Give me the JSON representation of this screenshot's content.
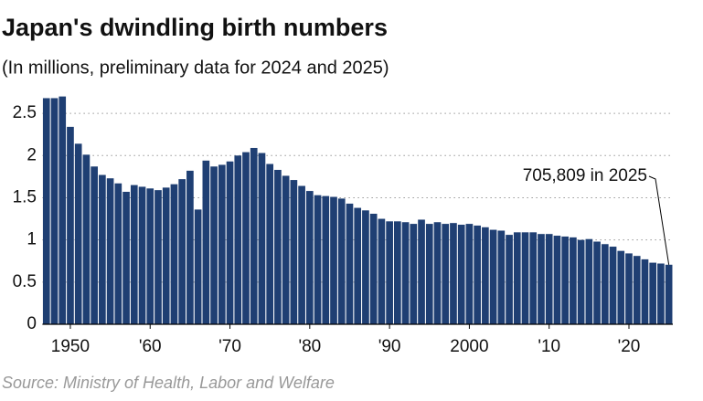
{
  "chart_data": {
    "type": "bar",
    "title": "Japan's dwindling birth numbers",
    "subtitle": "(In millions, preliminary data for 2024 and 2025)",
    "source": "Source: Ministry of Health, Labor and Welfare",
    "annotation": {
      "text": "705,809 in 2025",
      "x": 2025
    },
    "color": "#1f3f73",
    "x": [
      1947,
      1948,
      1949,
      1950,
      1951,
      1952,
      1953,
      1954,
      1955,
      1956,
      1957,
      1958,
      1959,
      1960,
      1961,
      1962,
      1963,
      1964,
      1965,
      1966,
      1967,
      1968,
      1969,
      1970,
      1971,
      1972,
      1973,
      1974,
      1975,
      1976,
      1977,
      1978,
      1979,
      1980,
      1981,
      1982,
      1983,
      1984,
      1985,
      1986,
      1987,
      1988,
      1989,
      1990,
      1991,
      1992,
      1993,
      1994,
      1995,
      1996,
      1997,
      1998,
      1999,
      2000,
      2001,
      2002,
      2003,
      2004,
      2005,
      2006,
      2007,
      2008,
      2009,
      2010,
      2011,
      2012,
      2013,
      2014,
      2015,
      2016,
      2017,
      2018,
      2019,
      2020,
      2021,
      2022,
      2023,
      2024,
      2025
    ],
    "values": [
      2.68,
      2.68,
      2.7,
      2.34,
      2.14,
      2.01,
      1.87,
      1.77,
      1.73,
      1.67,
      1.57,
      1.65,
      1.63,
      1.61,
      1.59,
      1.62,
      1.66,
      1.72,
      1.82,
      1.36,
      1.94,
      1.87,
      1.89,
      1.93,
      2.0,
      2.04,
      2.09,
      2.03,
      1.9,
      1.83,
      1.76,
      1.71,
      1.64,
      1.58,
      1.53,
      1.52,
      1.51,
      1.49,
      1.43,
      1.38,
      1.35,
      1.31,
      1.25,
      1.22,
      1.22,
      1.21,
      1.19,
      1.24,
      1.19,
      1.21,
      1.19,
      1.2,
      1.18,
      1.19,
      1.17,
      1.15,
      1.12,
      1.11,
      1.06,
      1.09,
      1.09,
      1.09,
      1.07,
      1.07,
      1.05,
      1.04,
      1.03,
      1.0,
      1.01,
      0.98,
      0.95,
      0.92,
      0.87,
      0.84,
      0.81,
      0.77,
      0.73,
      0.72,
      0.705809
    ],
    "xlim": [
      1946.5,
      2025.5
    ],
    "xticks": [
      1950,
      {
        "value": 1960,
        "label": "'60"
      },
      {
        "value": 1970,
        "label": "'70"
      },
      {
        "value": 1980,
        "label": "'80"
      },
      {
        "value": 1990,
        "label": "'90"
      },
      2000,
      {
        "value": 2010,
        "label": "'10"
      },
      {
        "value": 2020,
        "label": "'20"
      }
    ],
    "ylim": [
      0,
      2.75
    ],
    "yticks": [
      0,
      0.5,
      1,
      1.5,
      2,
      2.5
    ],
    "grid": true
  }
}
